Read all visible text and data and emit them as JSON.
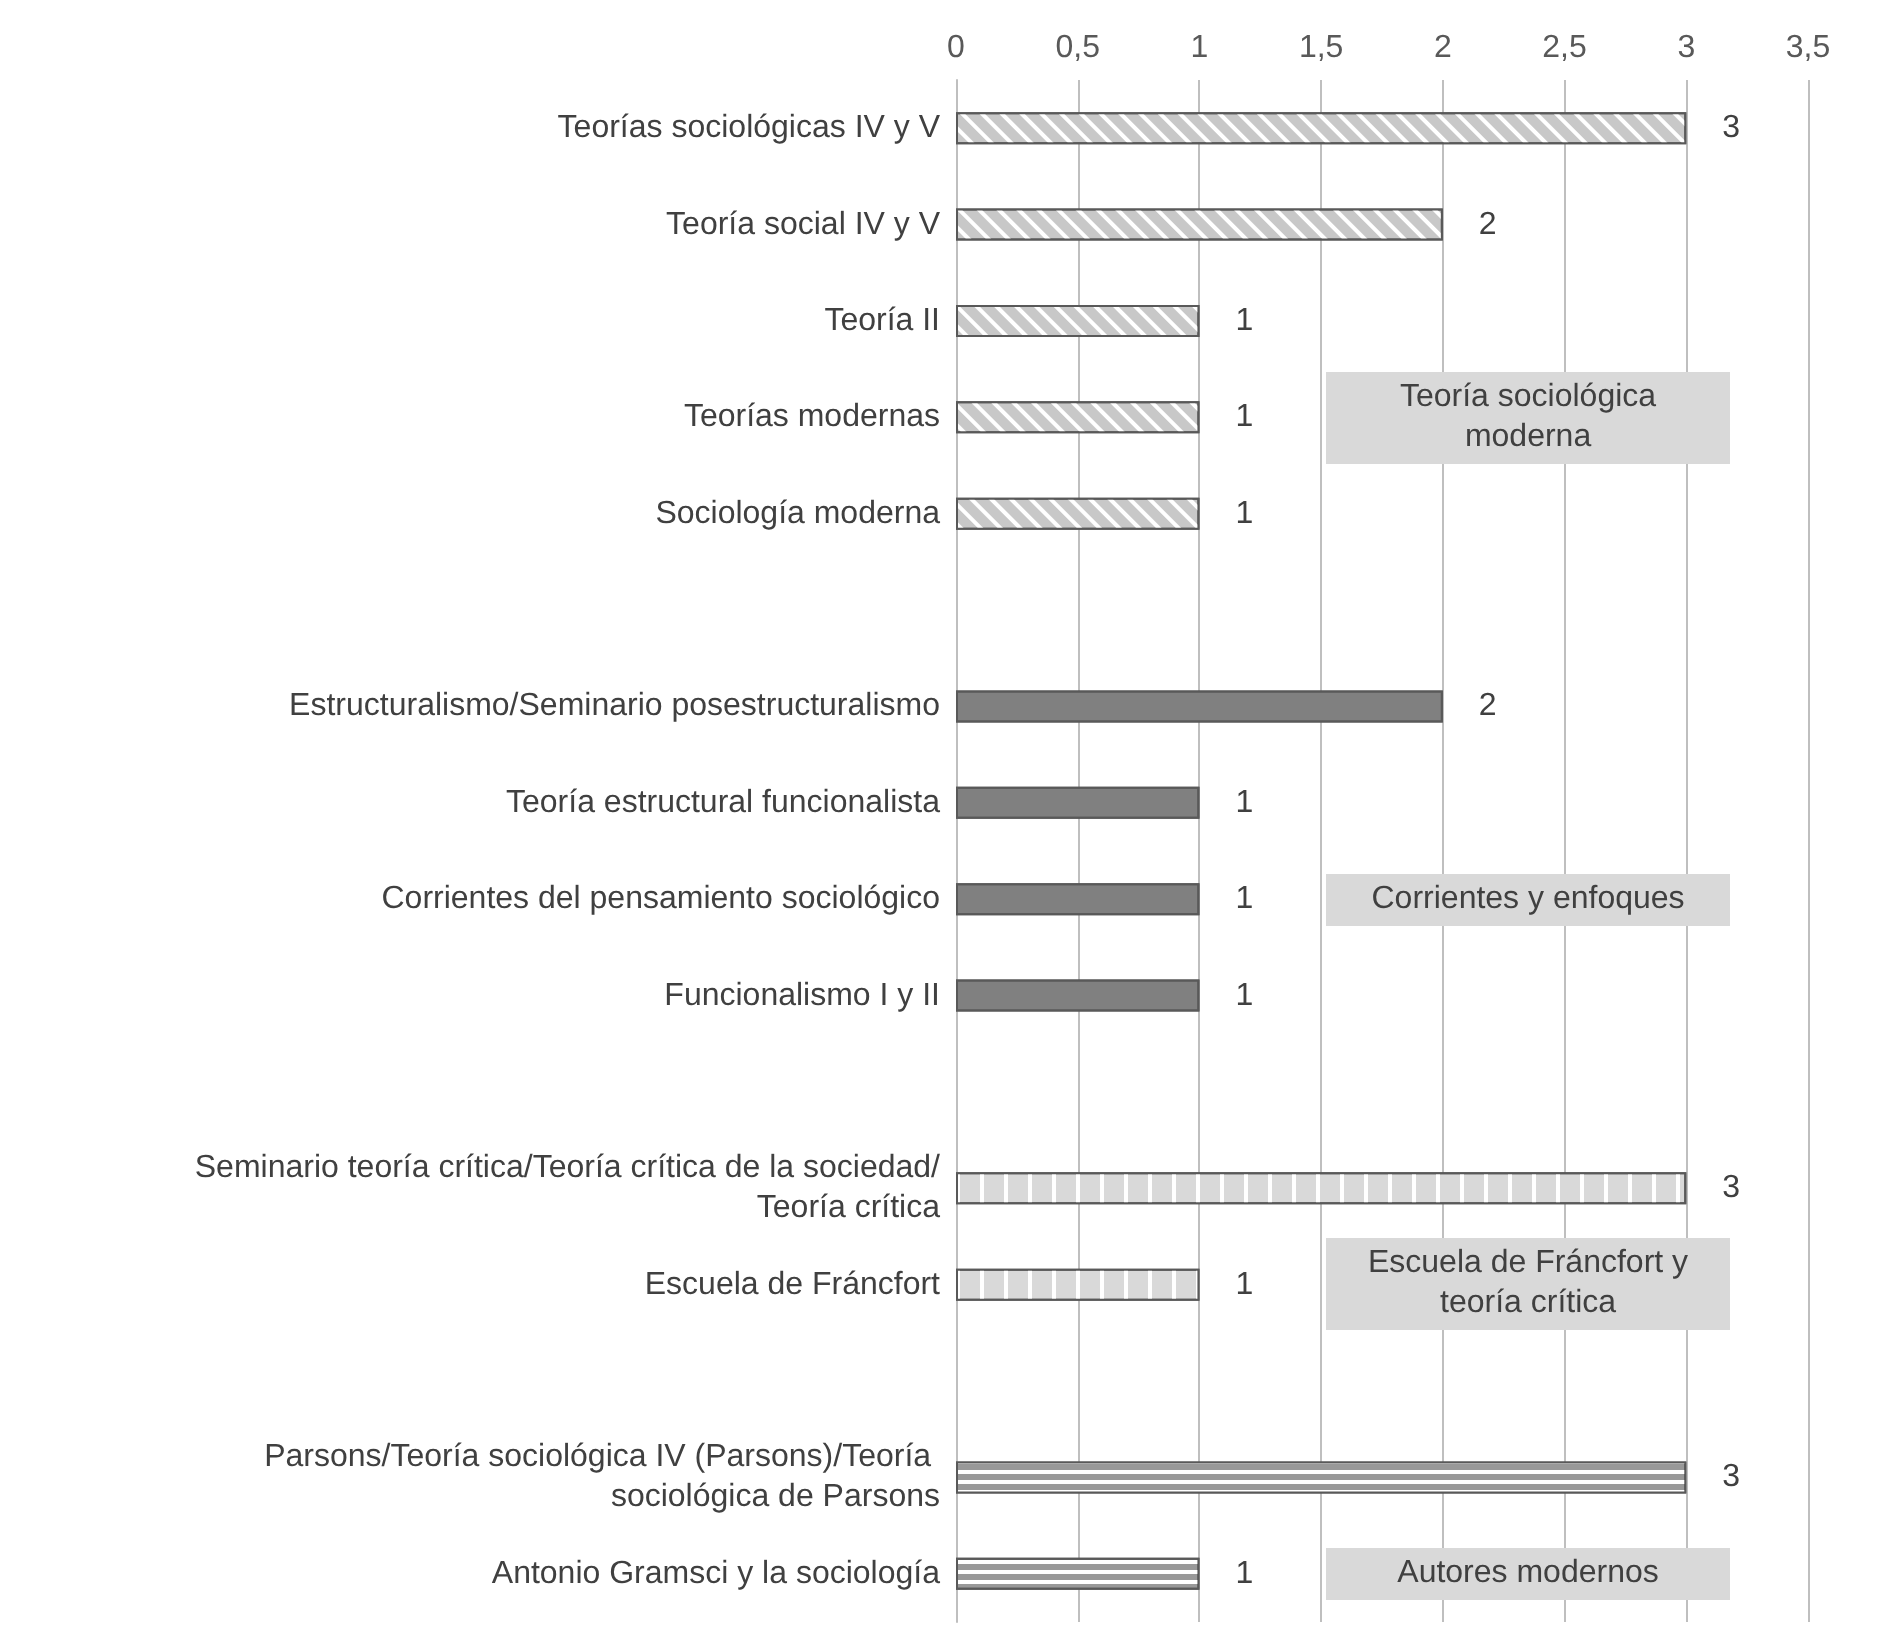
{
  "chart_data": {
    "type": "bar",
    "orientation": "horizontal",
    "categories": [
      "Teorías sociológicas IV y V",
      "Teoría social IV y V",
      "Teoría II",
      "Teorías modernas",
      "Sociología moderna",
      null,
      "Estructuralismo/Seminario posestructuralismo",
      "Teoría estructural funcionalista",
      "Corrientes del pensamiento sociológico",
      "Funcionalismo I y II",
      null,
      "Seminario teoría crítica/Teoría crítica de la sociedad/Teoría crítica",
      "Escuela de Fráncfort",
      null,
      "Parsons/Teoría sociológica IV (Parsons)/Teoría sociológica de Parsons",
      "Antonio Gramsci y la sociología"
    ],
    "series": [
      {
        "color": "#c8c8c8",
        "values": [
          3,
          2,
          1,
          1,
          1,
          null,
          null,
          null,
          null,
          null,
          null,
          null,
          null,
          null,
          null,
          null
        ]
      },
      {
        "color": "#808080",
        "values": [
          null,
          null,
          null,
          null,
          null,
          null,
          2,
          1,
          1,
          1,
          null,
          null,
          null,
          null,
          null,
          null
        ]
      },
      {
        "color": "#d9d9d9",
        "values": [
          null,
          null,
          null,
          null,
          null,
          null,
          null,
          null,
          null,
          null,
          null,
          3,
          1,
          null,
          null,
          null
        ]
      },
      {
        "color": "#999999",
        "values": [
          null,
          null,
          null,
          null,
          null,
          null,
          null,
          null,
          null,
          null,
          null,
          null,
          null,
          null,
          3,
          1
        ]
      }
    ],
    "annotations": [
      "Teoría sociológica moderna",
      "Corrientes y enfoques",
      "Escuela de Fráncfort y teoría crítica",
      "Autores modernos"
    ],
    "xlim": [
      0,
      3.5
    ],
    "xticks": [
      0,
      {
        "value": 0.5,
        "label": "0,5"
      },
      1,
      {
        "value": 1.5,
        "label": "1,5"
      },
      2,
      {
        "value": 2.5,
        "label": "2,5"
      },
      3,
      {
        "value": 3.5,
        "label": "3,5"
      }
    ],
    "data_labels": true,
    "grid": "x"
  }
}
